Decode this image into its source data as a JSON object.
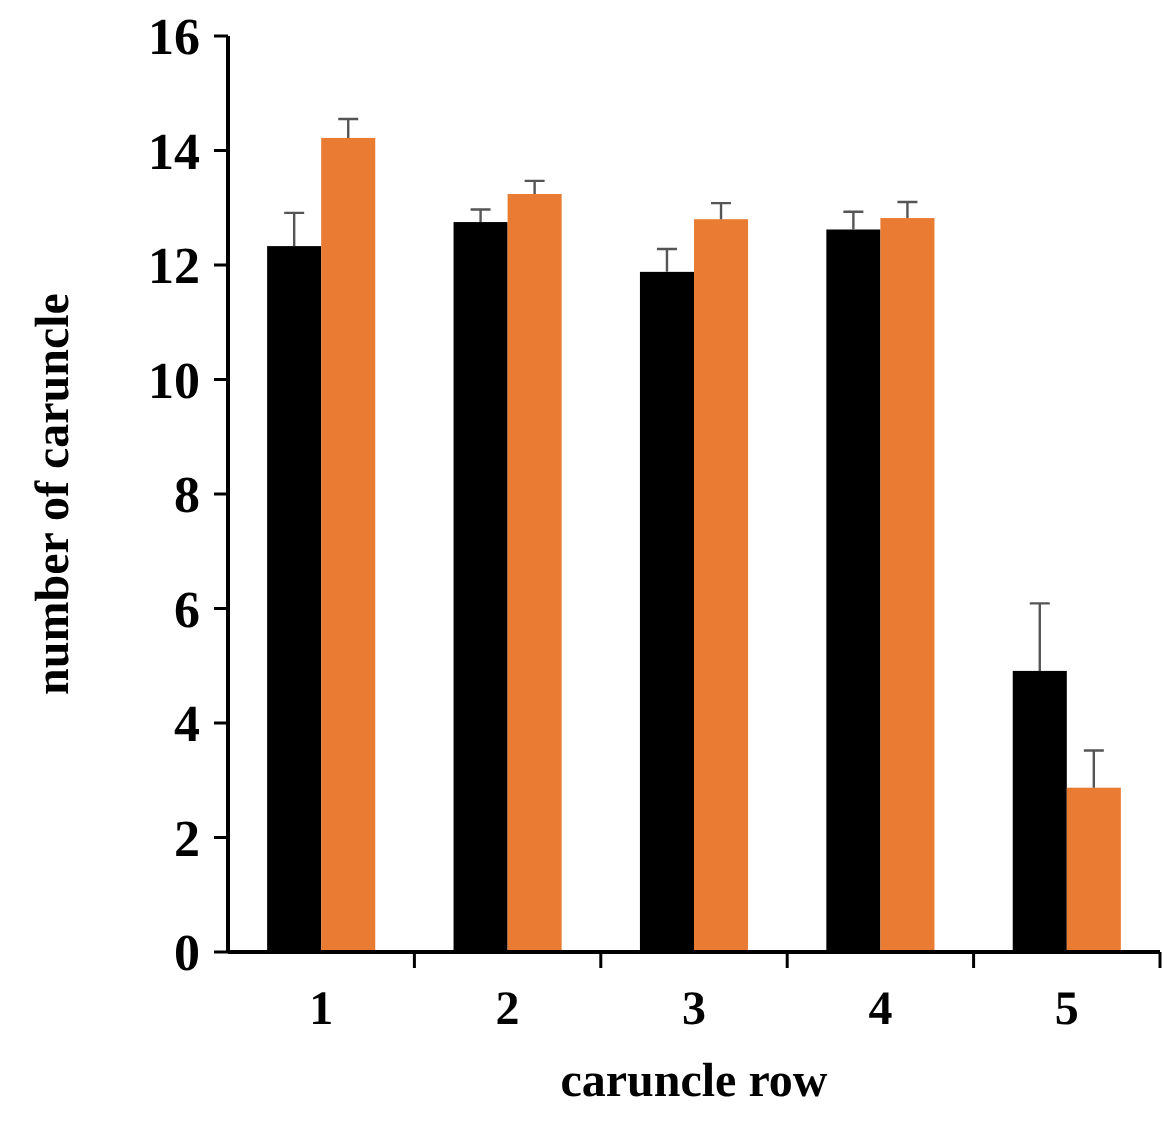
{
  "chart_data": {
    "type": "bar",
    "xlabel": "caruncle row",
    "ylabel": "number of caruncle",
    "categories": [
      "1",
      "2",
      "3",
      "4",
      "5"
    ],
    "series": [
      {
        "color": "#000000",
        "values": [
          12.33,
          12.75,
          11.88,
          12.62,
          4.91
        ],
        "errors": [
          [
            12.33,
            12.91
          ],
          [
            12.75,
            12.97
          ],
          [
            11.88,
            12.28
          ],
          [
            12.62,
            12.93
          ],
          [
            4.91,
            6.09
          ]
        ]
      },
      {
        "color": "#e97b32",
        "values": [
          14.22,
          13.24,
          12.8,
          12.82,
          2.87
        ],
        "errors": [
          [
            14.22,
            14.55
          ],
          [
            13.24,
            13.47
          ],
          [
            12.8,
            13.08
          ],
          [
            12.82,
            13.1
          ],
          [
            2.87,
            3.52
          ]
        ]
      }
    ],
    "ylim": [
      0,
      16
    ],
    "yticks": [
      0,
      2,
      4,
      6,
      8,
      10,
      12,
      14,
      16
    ],
    "grid": false
  }
}
